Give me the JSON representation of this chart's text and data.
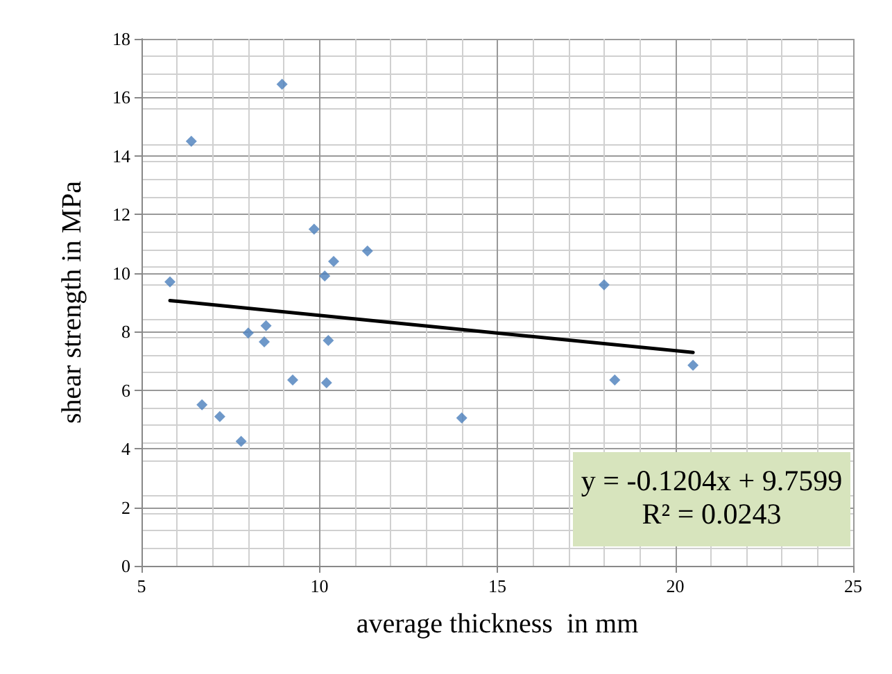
{
  "chart_data": {
    "type": "scatter",
    "xlabel": "average thickness  in mm",
    "ylabel": "shear strength in MPa",
    "xlim": [
      5,
      25
    ],
    "xticks": [
      5,
      10,
      15,
      20,
      25
    ],
    "ylim": [
      0,
      18
    ],
    "yticks": [
      0,
      2,
      4,
      6,
      8,
      10,
      12,
      14,
      16,
      18
    ],
    "grid": true,
    "series": [
      {
        "marker": "diamond",
        "color": "#4a7ebb",
        "x": [
          5.8,
          6.4,
          6.7,
          7.2,
          7.8,
          8.0,
          8.45,
          8.5,
          8.95,
          9.25,
          9.85,
          10.15,
          10.2,
          10.25,
          10.4,
          11.35,
          14.0,
          18.0,
          18.3,
          20.5
        ],
        "values": [
          9.7,
          14.5,
          5.5,
          5.1,
          4.25,
          7.95,
          7.65,
          8.2,
          16.45,
          6.35,
          11.5,
          9.9,
          6.25,
          7.7,
          10.4,
          10.75,
          5.05,
          9.6,
          6.35,
          6.85
        ]
      },
      {
        "type": "line",
        "marker": "none",
        "color": "#000000",
        "x": [
          5.8,
          20.5
        ],
        "values": [
          9.06,
          7.29
        ]
      }
    ],
    "annotations": [
      "y = -0.1204x + 9.7599",
      "R² = 0.0243"
    ]
  }
}
